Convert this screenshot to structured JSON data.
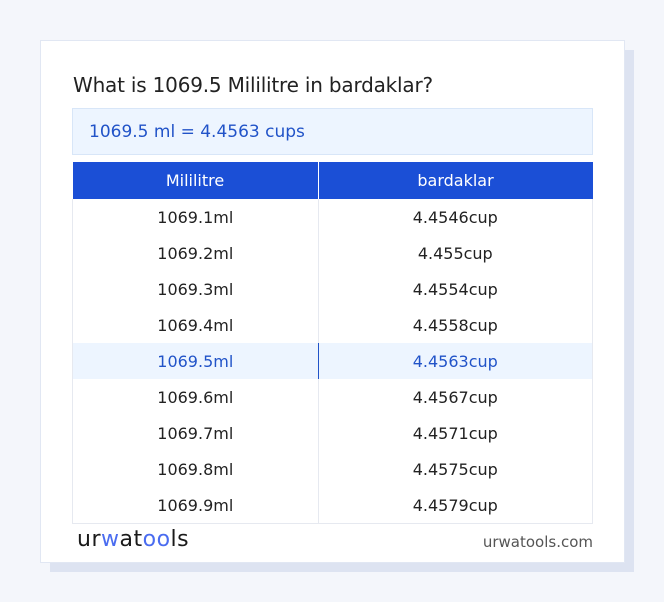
{
  "title": "What is 1069.5 Mililitre in bardaklar?",
  "result": "1069.5 ml = 4.4563 cups",
  "table": {
    "headers": [
      "Mililitre",
      "bardaklar"
    ],
    "rows": [
      [
        "1069.1ml",
        "4.4546cup"
      ],
      [
        "1069.2ml",
        "4.455cup"
      ],
      [
        "1069.3ml",
        "4.4554cup"
      ],
      [
        "1069.4ml",
        "4.4558cup"
      ],
      [
        "1069.5ml",
        "4.4563cup"
      ],
      [
        "1069.6ml",
        "4.4567cup"
      ],
      [
        "1069.7ml",
        "4.4571cup"
      ],
      [
        "1069.8ml",
        "4.4575cup"
      ],
      [
        "1069.9ml",
        "4.4579cup"
      ]
    ],
    "highlighted_row": 4
  },
  "footer": {
    "logo": "urwatools",
    "site": "urwatools.com"
  },
  "colors": {
    "accent": "#1b4fd6",
    "highlight_bg": "#edf5ff",
    "highlight_text": "#2153c8"
  }
}
